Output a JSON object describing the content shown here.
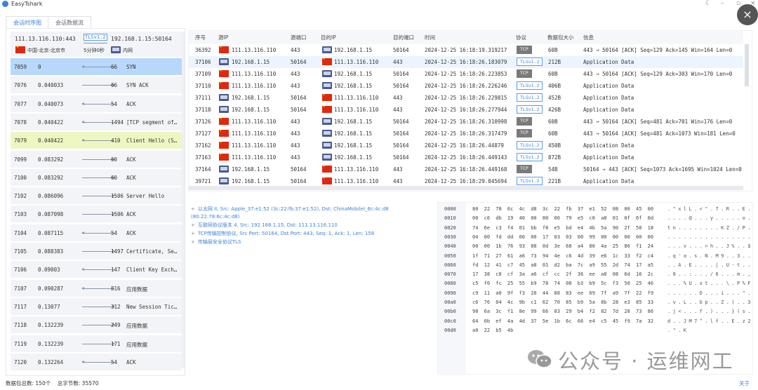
{
  "app": {
    "title": "EasyTshark"
  },
  "tabs": [
    {
      "label": "会话时序图",
      "active": true
    },
    {
      "label": "会话数据流",
      "active": false
    }
  ],
  "session": {
    "src": "111.13.116.110:443",
    "protocol": "TLSv1.2",
    "dst": "192.168.1.15:50164",
    "src_location": "中国-北京-北京市",
    "duration": "5分钟0秒",
    "dst_location": "内网"
  },
  "timeline": [
    {
      "no": "7059",
      "time": "0",
      "dir": "left",
      "len": "66",
      "info": "SYN",
      "selected": true
    },
    {
      "no": "7076",
      "time": "0.040033",
      "dir": "right",
      "len": "66",
      "info": "SYN ACK"
    },
    {
      "no": "7077",
      "time": "0.040073",
      "dir": "left",
      "len": "54",
      "info": "ACK"
    },
    {
      "no": "7078",
      "time": "0.040422",
      "dir": "left",
      "len": "1494",
      "info": "[TCP segment of…"
    },
    {
      "no": "7079",
      "time": "0.040422",
      "dir": "left",
      "len": "410",
      "info": "Client Hello (S…",
      "highlight": true
    },
    {
      "no": "7099",
      "time": "0.083292",
      "dir": "right",
      "len": "60",
      "info": "ACK"
    },
    {
      "no": "7100",
      "time": "0.083292",
      "dir": "right",
      "len": "60",
      "info": "ACK"
    },
    {
      "no": "7102",
      "time": "0.086096",
      "dir": "right",
      "len": "1506",
      "info": "Server Hello"
    },
    {
      "no": "7103",
      "time": "0.087098",
      "dir": "right",
      "len": "1506",
      "info": "ACK"
    },
    {
      "no": "7104",
      "time": "0.087115",
      "dir": "left",
      "len": "54",
      "info": "ACK"
    },
    {
      "no": "7105",
      "time": "0.088383",
      "dir": "right",
      "len": "1497",
      "info": "Certificate, Se…"
    },
    {
      "no": "7106",
      "time": "0.09003",
      "dir": "left",
      "len": "147",
      "info": "Client Key Exch…"
    },
    {
      "no": "7107",
      "time": "0.090287",
      "dir": "left",
      "len": "816",
      "info": "应用数据"
    },
    {
      "no": "7117",
      "time": "0.13077",
      "dir": "right",
      "len": "312",
      "info": "New Session Tic…"
    },
    {
      "no": "7118",
      "time": "0.132239",
      "dir": "right",
      "len": "249",
      "info": "应用数据"
    },
    {
      "no": "7119",
      "time": "0.132239",
      "dir": "right",
      "len": "171",
      "info": "应用数据"
    },
    {
      "no": "7120",
      "time": "0.132264",
      "dir": "left",
      "len": "54",
      "info": "ACK"
    }
  ],
  "packet_table": {
    "columns": [
      "序号",
      "源IP",
      "源端口",
      "目的IP",
      "目的端口",
      "时间",
      "协议",
      "数据包大小",
      "信息"
    ],
    "rows": [
      {
        "no": "36392",
        "src_icon": "cn-flag",
        "src": "111.13.116.110",
        "sport": "443",
        "dst_icon": "pc",
        "dst": "192.168.1.15",
        "dport": "50164",
        "time": "2024-12-25 16:18:19.319217",
        "proto": "TCP",
        "size": "60B",
        "info": "443 → 50164 [ACK] Seq=129 Ack=145 Win=164 Len=0"
      },
      {
        "no": "37106",
        "src_icon": "pc",
        "src": "192.168.1.15",
        "sport": "50164",
        "dst_icon": "cn-flag",
        "dst": "111.13.116.110",
        "dport": "443",
        "time": "2024-12-25 16:18:26.183079",
        "proto": "TLSv1.2",
        "size": "212B",
        "info": "Application Data",
        "selected": true
      },
      {
        "no": "37109",
        "src_icon": "cn-flag",
        "src": "111.13.116.110",
        "sport": "443",
        "dst_icon": "pc",
        "dst": "192.168.1.15",
        "dport": "50164",
        "time": "2024-12-25 16:18:26.223853",
        "proto": "TCP",
        "size": "60B",
        "info": "443 → 50164 [ACK] Seq=129 Ack=303 Win=170 Len=0"
      },
      {
        "no": "37110",
        "src_icon": "cn-flag",
        "src": "111.13.116.110",
        "sport": "443",
        "dst_icon": "pc",
        "dst": "192.168.1.15",
        "dport": "50164",
        "time": "2024-12-25 16:18:26.226246",
        "proto": "TLSv1.2",
        "size": "406B",
        "info": "Application Data"
      },
      {
        "no": "37111",
        "src_icon": "pc",
        "src": "192.168.1.15",
        "sport": "50164",
        "dst_icon": "cn-flag",
        "dst": "111.13.116.110",
        "dport": "443",
        "time": "2024-12-25 16:18:26.229815",
        "proto": "TLSv1.2",
        "size": "452B",
        "info": "Application Data"
      },
      {
        "no": "37118",
        "src_icon": "pc",
        "src": "192.168.1.15",
        "sport": "50164",
        "dst_icon": "cn-flag",
        "dst": "111.13.116.110",
        "dport": "443",
        "time": "2024-12-25 16:18:26.277944",
        "proto": "TLSv1.2",
        "size": "426B",
        "info": "Application Data"
      },
      {
        "no": "37126",
        "src_icon": "cn-flag",
        "src": "111.13.116.110",
        "sport": "443",
        "dst_icon": "pc",
        "dst": "192.168.1.15",
        "dport": "50164",
        "time": "2024-12-25 16:18:26.310998",
        "proto": "TCP",
        "size": "60B",
        "info": "443 → 50164 [ACK] Seq=481 Ack=701 Win=176 Len=0"
      },
      {
        "no": "37127",
        "src_icon": "cn-flag",
        "src": "111.13.116.110",
        "sport": "443",
        "dst_icon": "pc",
        "dst": "192.168.1.15",
        "dport": "50164",
        "time": "2024-12-25 16:18:26.317479",
        "proto": "TCP",
        "size": "60B",
        "info": "443 → 50164 [ACK] Seq=481 Ack=1073 Win=181 Len=0"
      },
      {
        "no": "37162",
        "src_icon": "cn-flag",
        "src": "111.13.116.110",
        "sport": "443",
        "dst_icon": "pc",
        "dst": "192.168.1.15",
        "dport": "50164",
        "time": "2024-12-25 16:18:26.44879",
        "proto": "TLSv1.2",
        "size": "450B",
        "info": "Application Data"
      },
      {
        "no": "37163",
        "src_icon": "cn-flag",
        "src": "111.13.116.110",
        "sport": "443",
        "dst_icon": "pc",
        "dst": "192.168.1.15",
        "dport": "50164",
        "time": "2024-12-25 16:18:26.449143",
        "proto": "TLSv1.2",
        "size": "872B",
        "info": "Application Data"
      },
      {
        "no": "37164",
        "src_icon": "pc",
        "src": "192.168.1.15",
        "sport": "50164",
        "dst_icon": "cn-flag",
        "dst": "111.13.116.110",
        "dport": "443",
        "time": "2024-12-25 16:18:26.449168",
        "proto": "TCP",
        "size": "54B",
        "info": "50164 → 443 [ACK] Seq=1073 Ack=1695 Win=1024 Len=0"
      },
      {
        "no": "39721",
        "src_icon": "pc",
        "src": "192.168.1.15",
        "sport": "50164",
        "dst_icon": "cn-flag",
        "dst": "111.13.116.110",
        "dport": "443",
        "time": "2024-12-25 16:18:29.045694",
        "proto": "TLSv1.2",
        "size": "221B",
        "info": "Application Data"
      }
    ]
  },
  "detail_tree": [
    "以太网 II, Src: Apple_37:e1:52 (3c:22:fb:37:e1:52), Dst: ChinaMobileI_6c:4c:d8 (80:22:78:6c:4c:d8)",
    "互联网协议版本 4, Src: 192.168.1.15, Dst: 111.13.116.110",
    "TCP传输控制协议, Src Port: 50164, Dst Port: 443, Seq: 1, Ack: 1, Len: 158",
    "传输层安全协议TLS"
  ],
  "hex_dump": [
    {
      "off": "0000",
      "hex": "80 22 78 6c 4c d8 3c 22 fb 37 e1 52 08 00 45 00",
      "ascii": ".\"xlL.<\".7.R..E."
    },
    {
      "off": "0010",
      "hex": "00 c6 db 19 40 00 80 06 79 e5 c0 a8 01 0f 6f 0d",
      "ascii": "....@...y.....o."
    },
    {
      "off": "0020",
      "hex": "74 6e c3 f4 01 bb f8 e5 bd e4 4b 5a 90 2f 50 18",
      "ascii": "tn........KZ./P."
    },
    {
      "off": "0030",
      "hex": "04 00 fd dd 00 00 17 03 03 00 99 00 00 00 00 00",
      "ascii": "................"
    },
    {
      "off": "0040",
      "hex": "00 00 1b 76 93 88 0d 3e 68 a4 80 4a 25 86 f1 24",
      "ascii": "...v...>h..J%..$"
    },
    {
      "off": "0050",
      "hex": "1f 71 27 61 a6 73 94 4e c6 4d 39 e6 1c 33 f2 c4",
      "ascii": ".q'a.s.N.M9..3.."
    },
    {
      "off": "0060",
      "hex": "fd 12 41 c7 45 a8 01 d2 ba 7c a9 55 2d 74 17 a5",
      "ascii": "..A.E....|.U-t.."
    },
    {
      "off": "0070",
      "hex": "17 38 c8 cf 3a a6 cf cc 2f 36 ee a8 08 6d 16 2c",
      "ascii": ".8..:.../6...m.,"
    },
    {
      "off": "0080",
      "hex": "c5 f0 fc 25 55 b9 78 74 08 b3 b9 5c f3 50 25 46",
      "ascii": "...%U.xt...\\.P%F"
    },
    {
      "off": "0090",
      "hex": "c9 11 a0 9f f3 20 44 88 83 ee 69 7f a9 7f 22 f9",
      "ascii": "......D...i...\"."
    },
    {
      "off": "00a0",
      "hex": "c6 76 04 4c 9b c1 62 70 85 b9 5a 8b 28 e3 85 33",
      "ascii": ".v.L..bp..Z.(..3"
    },
    {
      "off": "00b0",
      "hex": "98 6a 3c f1 8e 99 66 83 29 b4 f2 82 7d 28 73 86",
      "ascii": ".j<...f.)...}(s."
    },
    {
      "off": "00c0",
      "hex": "64 0b ef 4a 4d 37 5e 1b 6c 66 e4 c5 45 f9 7a 32",
      "ascii": "d..JM7^.lf..E.z2"
    },
    {
      "off": "00d0",
      "hex": "a0 22 b5 4b",
      "ascii": ".\".K"
    }
  ],
  "watermark": "公众号 · 运维网工",
  "footer": {
    "stats": "数据包总数: 150个    总字节数: 35570",
    "about": "关于"
  },
  "colors": {
    "accent": "#3b82d6",
    "selected_row": "#b8d8fb",
    "highlight_row": "#eef7c2",
    "tcp_badge": "#7a7a7a"
  }
}
